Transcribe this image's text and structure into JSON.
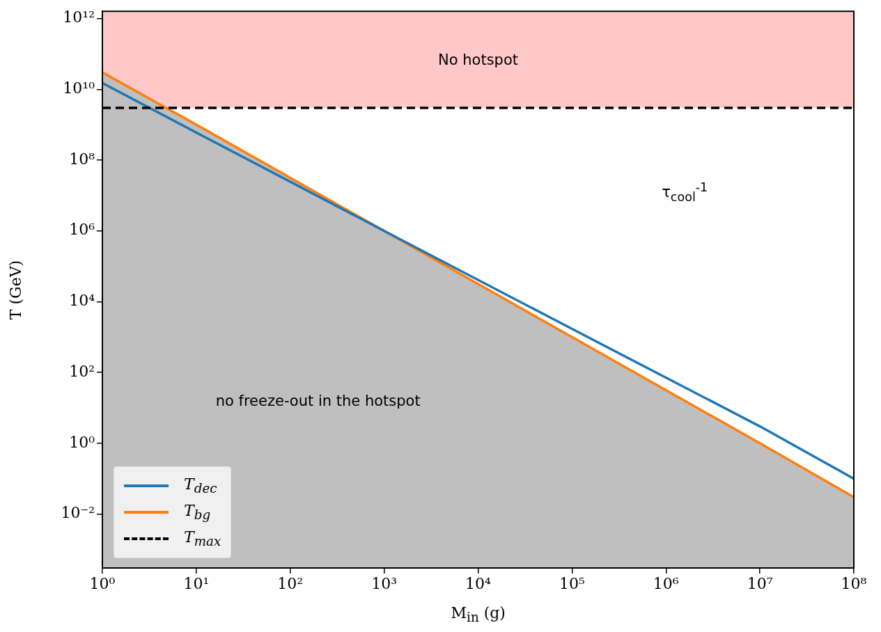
{
  "chart_data": {
    "type": "line",
    "xlabel": "M$_{in}$ (g)",
    "ylabel": "T (GeV)",
    "log": "xy",
    "grid": false,
    "legend": "bottom left",
    "marker": "none",
    "line_style": "solid",
    "xlim": [
      1,
      100000000
    ],
    "ylim": [
      0.0003,
      1600000000000
    ],
    "xticks": [
      {
        "value": 1,
        "label": "10⁰"
      },
      {
        "value": 10,
        "label": "10¹"
      },
      {
        "value": 100,
        "label": "10²"
      },
      {
        "value": 1000,
        "label": "10³"
      },
      {
        "value": 10000,
        "label": "10⁴"
      },
      {
        "value": 100000,
        "label": "10⁵"
      },
      {
        "value": 1000000,
        "label": "10⁶"
      },
      {
        "value": 10000000,
        "label": "10⁷"
      },
      {
        "value": 100000000,
        "label": "10⁸"
      }
    ],
    "yticks": [
      {
        "value": 0.01,
        "label": "10⁻²"
      },
      {
        "value": 1,
        "label": "10⁰"
      },
      {
        "value": 100,
        "label": "10²"
      },
      {
        "value": 10000,
        "label": "10⁴"
      },
      {
        "value": 1000000,
        "label": "10⁶"
      },
      {
        "value": 100000000,
        "label": "10⁸"
      },
      {
        "value": 10000000000,
        "label": "10¹⁰"
      },
      {
        "value": 1000000000000,
        "label": "10¹²"
      }
    ],
    "series": [
      {
        "name": "T$_{dec}$",
        "color": "#1f77b4",
        "x": [
          1,
          10,
          1000,
          100000,
          10000000,
          100000000
        ],
        "values": [
          15000000000,
          600000000,
          1000000,
          1700,
          3,
          0.1
        ]
      },
      {
        "name": "T$_{bg}$",
        "type": "area",
        "color": "#ff7f0e",
        "x": [
          1,
          10,
          1000,
          100000,
          10000000,
          100000000
        ],
        "values": [
          30000000000,
          1000000000,
          1000000,
          1000,
          1,
          0.03
        ]
      }
    ],
    "ref_lines": [
      {
        "axis": "y",
        "value": 3000000000,
        "label": "T$_{max}$",
        "color": "#000000",
        "line_style": "dashed"
      }
    ],
    "bands": [
      {
        "axis": "y",
        "from": 3000000000,
        "to": 1600000000000,
        "label": "No hotspot",
        "color": "#ffc8c8"
      }
    ],
    "annotations": [
      "no freeze-out in the hotspot",
      "τ$_{cool}$$^{-1}$"
    ]
  }
}
